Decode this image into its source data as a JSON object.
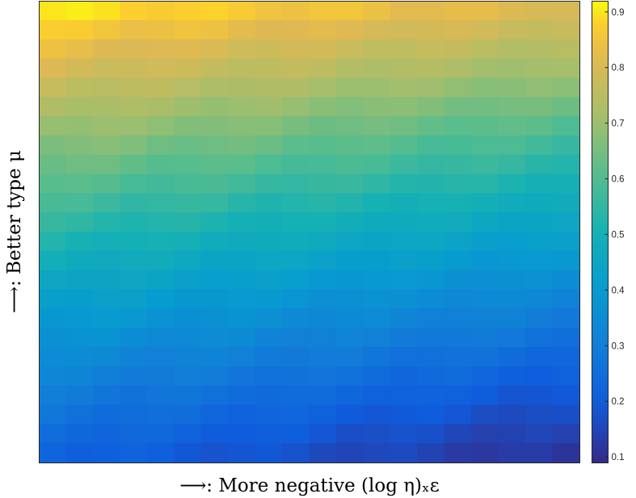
{
  "chart_data": {
    "type": "heatmap",
    "title": "",
    "xlabel": "⟶: More negative (log η)ₓε",
    "ylabel": "⟶: Better type μ",
    "colormap": "parula",
    "colorbar": {
      "range": [
        0.09,
        0.92
      ],
      "ticks": [
        "0.1",
        "0.2",
        "0.3",
        "0.4",
        "0.5",
        "0.6",
        "0.7",
        "0.8",
        "0.9"
      ]
    },
    "grid": {
      "columns": 20,
      "rows": 24
    },
    "value_summary": {
      "top_left": 0.92,
      "top_right": 0.82,
      "middle": 0.5,
      "bottom_left": 0.22,
      "bottom_right": 0.1
    },
    "xticks": false,
    "yticks": false
  }
}
